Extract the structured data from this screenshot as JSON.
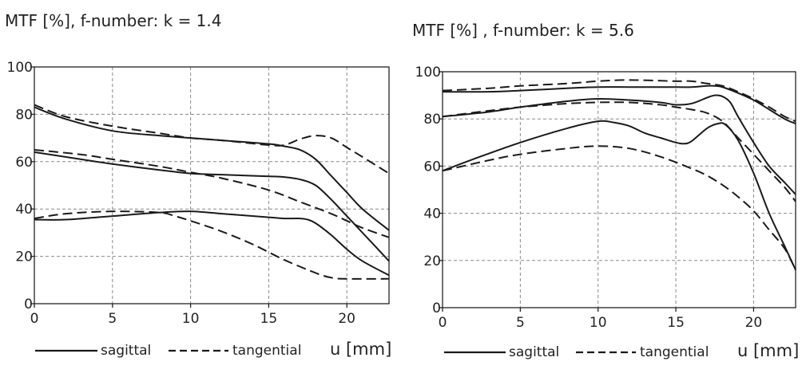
{
  "chart_data": [
    {
      "type": "line",
      "title": "MTF [%], f-number: k = 1.4",
      "xlabel": "u [mm]",
      "ylabel": "",
      "xlim": [
        0,
        22.7
      ],
      "ylim": [
        0,
        100
      ],
      "xticks": [
        0,
        5,
        10,
        15,
        20
      ],
      "yticks": [
        0,
        20,
        40,
        60,
        80,
        100
      ],
      "grid": true,
      "legend": {
        "placement": "bottom",
        "sagittal_label": "sagittal",
        "tangential_label": "tangential"
      },
      "series": [
        {
          "style": "sagittal",
          "x": [
            0,
            2,
            5,
            8,
            10,
            12,
            15,
            16,
            17,
            18,
            19,
            20,
            21,
            22.7
          ],
          "y": [
            83,
            78,
            73,
            71,
            70,
            69,
            67.5,
            66.5,
            65,
            61,
            54,
            47,
            40,
            31
          ]
        },
        {
          "style": "tangential",
          "x": [
            0,
            2,
            5,
            8,
            10,
            12,
            15,
            16,
            17,
            18,
            19,
            20,
            21,
            22.7
          ],
          "y": [
            84,
            79,
            75,
            72,
            70,
            69,
            67,
            67,
            69.5,
            71,
            70,
            66,
            62,
            55
          ]
        },
        {
          "style": "sagittal",
          "x": [
            0,
            3,
            5,
            8,
            10,
            12,
            15,
            16,
            17,
            18,
            19,
            20,
            21,
            22.7
          ],
          "y": [
            64,
            61,
            59,
            56.5,
            55,
            54.5,
            53.8,
            53.5,
            52.5,
            50,
            44,
            37,
            30,
            18
          ]
        },
        {
          "style": "tangential",
          "x": [
            0,
            3,
            5,
            8,
            10,
            12,
            15,
            17,
            19,
            20,
            21,
            22.7
          ],
          "y": [
            65,
            63,
            61,
            58,
            55.5,
            53,
            48,
            43,
            38,
            35,
            32,
            28
          ]
        },
        {
          "style": "sagittal",
          "x": [
            0,
            2,
            5,
            8,
            10,
            12,
            15,
            16,
            17,
            17.5,
            18,
            19,
            20,
            21,
            22.7
          ],
          "y": [
            35.5,
            35.5,
            37,
            38.5,
            39,
            38,
            36.5,
            36,
            36,
            35.5,
            34,
            29,
            23,
            18,
            12
          ]
        },
        {
          "style": "tangential",
          "x": [
            0,
            2,
            5,
            8,
            9,
            10,
            12,
            14,
            16,
            18,
            19,
            20,
            22.7
          ],
          "y": [
            36,
            38,
            39,
            38.5,
            37,
            35,
            30.5,
            25,
            18.5,
            13,
            11,
            10.5,
            10.5
          ]
        }
      ]
    },
    {
      "type": "line",
      "title": "MTF [%] , f-number: k = 5.6",
      "xlabel": "u [mm]",
      "ylabel": "",
      "xlim": [
        0,
        22.7
      ],
      "ylim": [
        0,
        100
      ],
      "xticks": [
        0,
        5,
        10,
        15,
        20
      ],
      "yticks": [
        0,
        20,
        40,
        60,
        80,
        100
      ],
      "grid": true,
      "legend": {
        "placement": "bottom",
        "sagittal_label": "sagittal",
        "tangential_label": "tangential"
      },
      "series": [
        {
          "style": "sagittal",
          "x": [
            0,
            3,
            5,
            8,
            10,
            12,
            15,
            16,
            17,
            17.5,
            18,
            19,
            20,
            21,
            22,
            22.7
          ],
          "y": [
            91.5,
            91.5,
            92,
            93,
            93.5,
            93.5,
            93.5,
            93.5,
            94,
            94,
            93.5,
            91,
            88,
            84,
            80,
            78
          ]
        },
        {
          "style": "tangential",
          "x": [
            0,
            3,
            5,
            8,
            10,
            12,
            15,
            16,
            17,
            18,
            19,
            20,
            21,
            22,
            22.7
          ],
          "y": [
            92,
            93,
            94,
            95,
            96,
            96.5,
            96,
            96,
            95,
            94,
            91.5,
            88.5,
            85,
            81,
            79
          ]
        },
        {
          "style": "sagittal",
          "x": [
            0,
            3,
            5,
            8,
            10,
            12,
            14,
            15,
            16,
            17,
            17.5,
            18,
            18.5,
            19,
            20,
            21,
            22,
            22.7
          ],
          "y": [
            81,
            83,
            85,
            87.5,
            88.5,
            88,
            87,
            86,
            86.5,
            89,
            90,
            89.5,
            87,
            81,
            70,
            60,
            53,
            48
          ]
        },
        {
          "style": "tangential",
          "x": [
            0,
            3,
            5,
            8,
            10,
            12,
            14,
            15,
            16,
            17,
            18,
            19,
            20,
            21,
            22,
            22.7
          ],
          "y": [
            81,
            83.5,
            85,
            86.5,
            87,
            87,
            86,
            85,
            84,
            82.5,
            79,
            72,
            65,
            58,
            51,
            45
          ]
        },
        {
          "style": "sagittal",
          "x": [
            0,
            2,
            5,
            8,
            10,
            11,
            12,
            13,
            14,
            15,
            15.5,
            16,
            17,
            17.7,
            18.2,
            19,
            20,
            21,
            22,
            22.7
          ],
          "y": [
            58,
            63,
            70,
            76,
            79,
            78.5,
            77,
            74,
            72,
            70,
            69.5,
            70.5,
            76,
            78,
            77.5,
            71,
            57,
            40,
            26,
            16
          ]
        },
        {
          "style": "tangential",
          "x": [
            0,
            3,
            5,
            8,
            10,
            12,
            14,
            16,
            17,
            18,
            19,
            20,
            21,
            22,
            22.7
          ],
          "y": [
            58,
            62.5,
            65,
            67.5,
            68.5,
            67.5,
            64,
            59,
            56,
            52,
            47,
            41,
            33,
            25,
            16
          ]
        }
      ]
    }
  ]
}
